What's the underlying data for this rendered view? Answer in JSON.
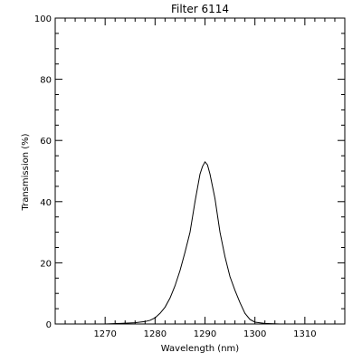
{
  "chart_data": {
    "type": "line",
    "title": "Filter 6114",
    "xlabel": "Wavelength (nm)",
    "ylabel": "Transmission (%)",
    "xlim": [
      1260,
      1318
    ],
    "ylim": [
      0,
      100
    ],
    "grid": false,
    "x_ticks": [
      {
        "value": 1270,
        "label": "1270"
      },
      {
        "value": 1280,
        "label": "1280"
      },
      {
        "value": 1290,
        "label": "1290"
      },
      {
        "value": 1300,
        "label": "1300"
      },
      {
        "value": 1310,
        "label": "1310"
      }
    ],
    "y_ticks": [
      {
        "value": 0,
        "label": "0"
      },
      {
        "value": 20,
        "label": "20"
      },
      {
        "value": 40,
        "label": "40"
      },
      {
        "value": 60,
        "label": "60"
      },
      {
        "value": 80,
        "label": "80"
      },
      {
        "value": 100,
        "label": "100"
      }
    ],
    "x_minor_step": 2,
    "y_minor_step": 5,
    "series": [
      {
        "color": "#000000",
        "x": [
          1260,
          1265,
          1270,
          1273,
          1276,
          1278,
          1279,
          1280,
          1281,
          1282,
          1283,
          1284,
          1285,
          1286,
          1287,
          1288,
          1288.5,
          1289,
          1289.5,
          1290,
          1290.5,
          1291,
          1291.5,
          1292,
          1293,
          1294,
          1295,
          1296,
          1297,
          1298,
          1299,
          1300,
          1302,
          1305,
          1310,
          1318
        ],
        "y": [
          0,
          0,
          0,
          0.2,
          0.4,
          0.8,
          1.2,
          2,
          3.5,
          5.5,
          8.5,
          12.5,
          17.5,
          23.5,
          30,
          40,
          44.5,
          49,
          51.5,
          53,
          52,
          49,
          45,
          41,
          30,
          22,
          15.5,
          11,
          7,
          3.5,
          1.5,
          0.6,
          0.2,
          0,
          0,
          0
        ]
      }
    ]
  }
}
